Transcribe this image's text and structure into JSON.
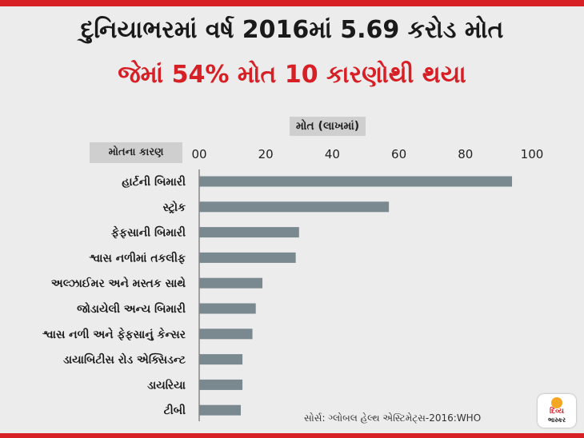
{
  "header": {
    "title": "દુનિયાભરમાં વર્ષ 2016માં 5.69 કરોડ મોત",
    "subtitle": "જેમાં 54% મોત 10 કારણોથી થયા"
  },
  "chart_data": {
    "type": "bar",
    "orientation": "horizontal",
    "xlabel": "મોત (લાખમાં)",
    "category_header": "મોતના કારણ",
    "xlim": [
      0,
      100
    ],
    "ticks": [
      "00",
      "20",
      "40",
      "60",
      "80",
      "100"
    ],
    "categories": [
      "હાર્ટની બિમારી",
      "સ્ટ્રોક",
      "ફેફસાની બિમારી",
      "શ્વાસ નળીમાં તકલીફ",
      "અલ્ઝાઈમર અને મસ્તક સાથે",
      "જોડાયેલી અન્ય બિમારી",
      "શ્વાસ નળી અને ફેફસાનું કેન્સર",
      "ડાયાબિટીસ રોડ એક્સિડન્ટ",
      "ડાયરિયા",
      "ટીબી"
    ],
    "values": [
      94,
      57,
      30,
      29,
      19,
      17,
      16,
      13,
      13,
      12.5
    ],
    "bar_color": "#7a8890",
    "grid": false,
    "legend": "none"
  },
  "footer": {
    "source": "સોર્સ: ગ્લોબલ હેલ્થ એસ્ટિમેટ્સ-2016:WHO"
  },
  "logo": {
    "line1": "દિવ્ય",
    "line2": "ભાસ્કર"
  },
  "colors": {
    "accent": "#d71f26",
    "background": "#ececec"
  }
}
